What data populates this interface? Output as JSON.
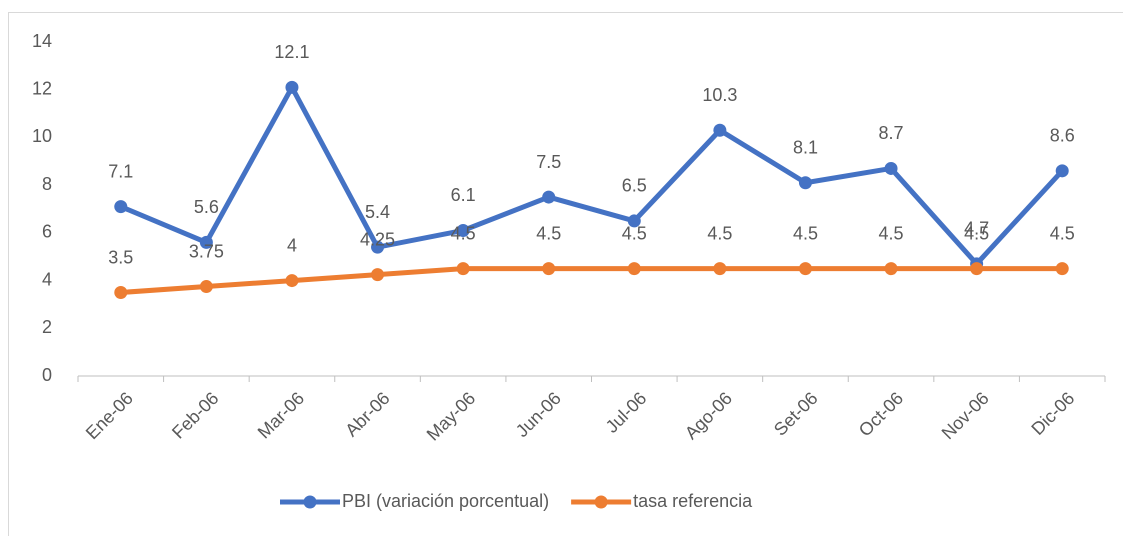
{
  "chart_data": {
    "type": "line",
    "categories": [
      "Ene-06",
      "Feb-06",
      "Mar-06",
      "Abr-06",
      "May-06",
      "Jun-06",
      "Jul-06",
      "Ago-06",
      "Set-06",
      "Oct-06",
      "Nov-06",
      "Dic-06"
    ],
    "series": [
      {
        "name": "PBI (variación porcentual)",
        "color": "#4472c4",
        "values": [
          7.1,
          5.6,
          12.1,
          5.4,
          6.1,
          7.5,
          6.5,
          10.3,
          8.1,
          8.7,
          4.7,
          8.6
        ]
      },
      {
        "name": "tasa referencia",
        "color": "#ed7d31",
        "values": [
          3.5,
          3.75,
          4,
          4.25,
          4.5,
          4.5,
          4.5,
          4.5,
          4.5,
          4.5,
          4.5,
          4.5
        ]
      }
    ],
    "ylim": [
      0,
      14
    ],
    "yticks": [
      0,
      2,
      4,
      6,
      8,
      10,
      12,
      14
    ],
    "grid": false,
    "legend": "bottom",
    "data_labels": true
  }
}
